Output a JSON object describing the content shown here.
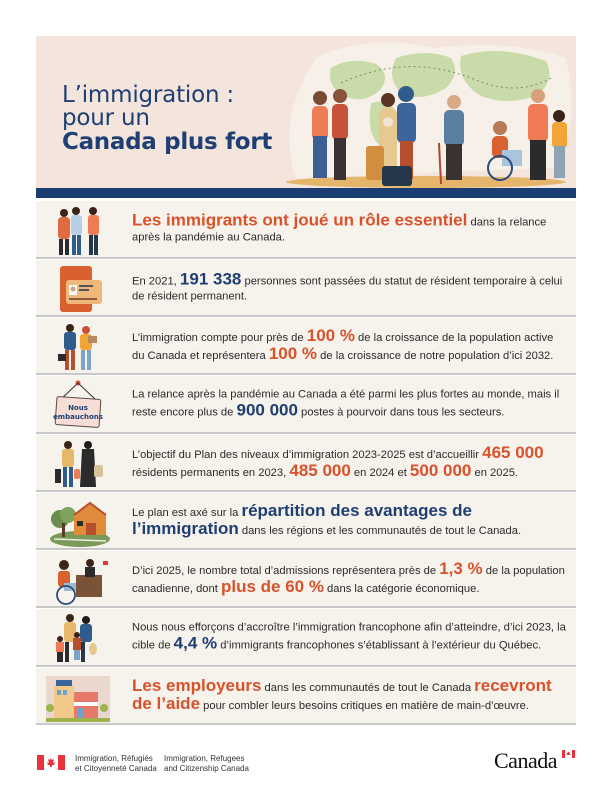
{
  "header": {
    "title_line1": "L’immigration :",
    "title_line2": "pour un",
    "title_line3": "Canada plus fort",
    "illustration": "diverse-people-world-map-illustration"
  },
  "colors": {
    "navy": "#1f3f73",
    "orange": "#d9522b",
    "header_bg": "#f3e4dc",
    "row_bg": "#f6f2ec",
    "bar": "#1b3e72"
  },
  "rows": [
    {
      "icon": "family-group-icon",
      "parts": [
        {
          "t": "Les immigrants ont joué un rôle essentiel",
          "s": "o big"
        },
        {
          "t": " dans la relance après la pandémie au Canada.",
          "s": ""
        }
      ]
    },
    {
      "icon": "resident-card-icon",
      "parts": [
        {
          "t": "En 2021, ",
          "s": ""
        },
        {
          "t": "191 338",
          "s": "b big"
        },
        {
          "t": " personnes sont passées du statut de résident temporaire à celui de résident permanent.",
          "s": ""
        }
      ]
    },
    {
      "icon": "workers-icon",
      "parts": [
        {
          "t": "L’immigration compte pour près de ",
          "s": ""
        },
        {
          "t": "100 %",
          "s": "o big"
        },
        {
          "t": " de la croissance de la population active du Canada et représentera ",
          "s": ""
        },
        {
          "t": "100 %",
          "s": "o big"
        },
        {
          "t": " de la croissance de notre population d’ici 2032.",
          "s": ""
        }
      ]
    },
    {
      "icon": "hiring-sign-icon",
      "sign_text": "Nous embauchons",
      "parts": [
        {
          "t": "La relance après la pandémie au Canada a été parmi les plus fortes au monde, mais il reste encore plus de ",
          "s": ""
        },
        {
          "t": "900 000",
          "s": "b big"
        },
        {
          "t": " postes à pourvoir dans tous les secteurs.",
          "s": ""
        }
      ]
    },
    {
      "icon": "travelers-luggage-icon",
      "parts": [
        {
          "t": "L’objectif du Plan des niveaux d’immigration 2023-2025 est d’accueillir ",
          "s": ""
        },
        {
          "t": "465 000",
          "s": "o big"
        },
        {
          "t": " résidents permanents en 2023, ",
          "s": ""
        },
        {
          "t": "485 000",
          "s": "o big"
        },
        {
          "t": " en 2024 et ",
          "s": ""
        },
        {
          "t": "500 000",
          "s": "o big"
        },
        {
          "t": " en 2025.",
          "s": ""
        }
      ]
    },
    {
      "icon": "farm-barn-icon",
      "parts": [
        {
          "t": "Le plan est axé sur la ",
          "s": ""
        },
        {
          "t": "répartition des avantages de l’immigration",
          "s": "b big"
        },
        {
          "t": " dans les régions et les communautés de tout le Canada.",
          "s": ""
        }
      ]
    },
    {
      "icon": "wheelchair-office-icon",
      "parts": [
        {
          "t": "D’ici 2025, le nombre total d’admissions représentera près de ",
          "s": ""
        },
        {
          "t": "1,3 %",
          "s": "o big"
        },
        {
          "t": " de la population canadienne, dont ",
          "s": ""
        },
        {
          "t": "plus de 60 %",
          "s": "o big"
        },
        {
          "t": " dans la catégorie économique.",
          "s": ""
        }
      ]
    },
    {
      "icon": "francophone-family-icon",
      "parts": [
        {
          "t": "Nous nous efforçons d’accroître l’immigration francophone afin d’atteindre, d’ici 2023, la cible de ",
          "s": ""
        },
        {
          "t": "4,4 %",
          "s": "b big"
        },
        {
          "t": " d’immigrants francophones s’établissant à l’extérieur du Québec.",
          "s": ""
        }
      ]
    },
    {
      "icon": "storefront-buildings-icon",
      "parts": [
        {
          "t": "Les employeurs",
          "s": "o big"
        },
        {
          "t": " dans les communautés de tout le Canada ",
          "s": ""
        },
        {
          "t": "recevront de l’aide",
          "s": "o big"
        },
        {
          "t": " pour combler leurs besoins critiques en matière de main-d’œuvre.",
          "s": ""
        }
      ]
    }
  ],
  "footer": {
    "dept_fr_line1": "Immigration, Réfugiés",
    "dept_fr_line2": "et Citoyenneté Canada",
    "dept_en_line1": "Immigration, Refugees",
    "dept_en_line2": "and Citizenship Canada",
    "wordmark": "Canada"
  }
}
